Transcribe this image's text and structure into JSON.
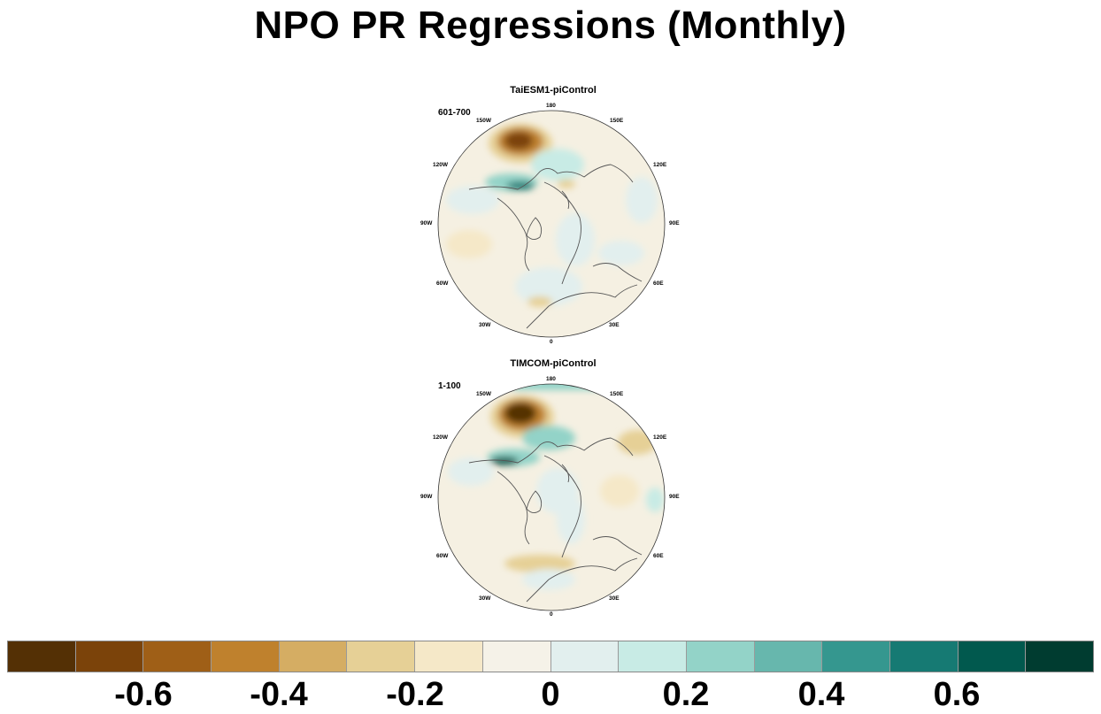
{
  "title": "NPO PR Regressions (Monthly)",
  "panels": [
    {
      "model": "TaiESM1-piControl",
      "period": "601-700"
    },
    {
      "model": "TIMCOM-piControl",
      "period": "1-100"
    }
  ],
  "longitude_labels": {
    "n180": "180",
    "e150": "150E",
    "e120": "120E",
    "e90": "90E",
    "e60": "60E",
    "e30": "30E",
    "zero": "0",
    "w30": "30W",
    "w60": "60W",
    "w90": "90W",
    "w120": "120W",
    "w150": "150W"
  },
  "colorbar": {
    "colors": [
      "#543005",
      "#7b430a",
      "#9f5f17",
      "#bf812d",
      "#d5ad63",
      "#e6d096",
      "#f5e8c8",
      "#f5f2e8",
      "#e2efee",
      "#c8ebe5",
      "#93d3c8",
      "#67b7ad",
      "#35978f",
      "#167a73",
      "#01594e",
      "#003c30"
    ],
    "labels": {
      "m06": "-0.6",
      "m04": "-0.4",
      "m02": "-0.2",
      "z": "0",
      "p02": "0.2",
      "p04": "0.4",
      "p06": "0.6"
    }
  }
}
